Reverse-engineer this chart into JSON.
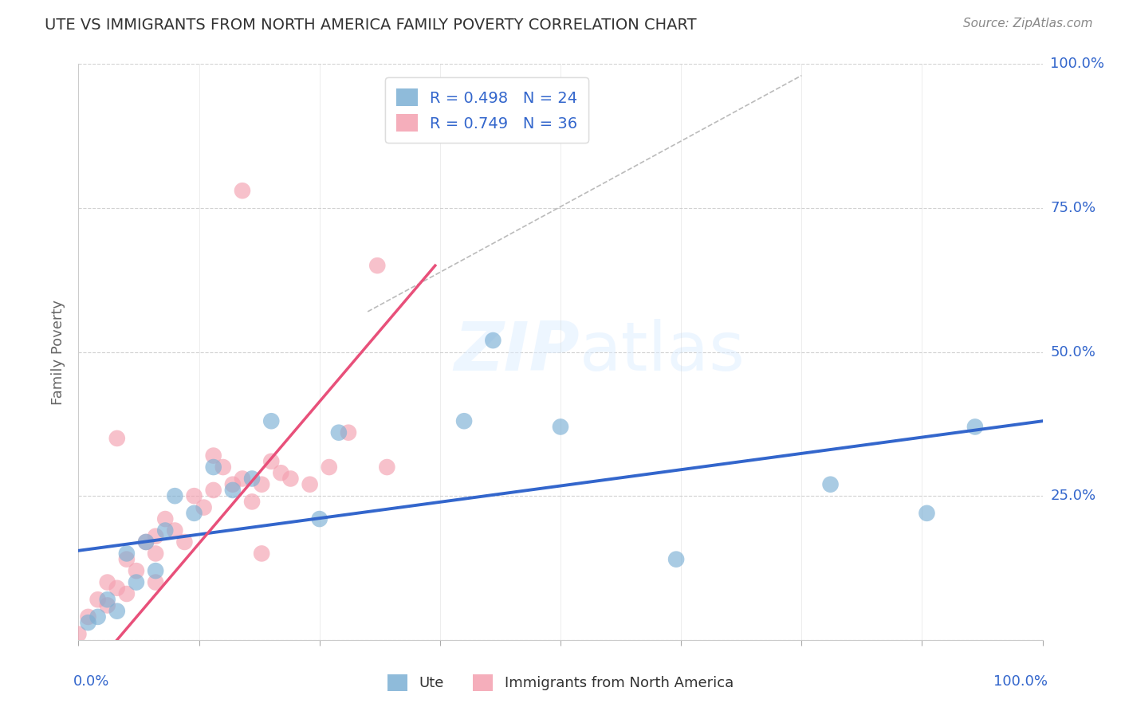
{
  "title": "UTE VS IMMIGRANTS FROM NORTH AMERICA FAMILY POVERTY CORRELATION CHART",
  "source": "Source: ZipAtlas.com",
  "ylabel": "Family Poverty",
  "xlim": [
    0,
    1
  ],
  "ylim": [
    0,
    1
  ],
  "ute_color": "#7BAFD4",
  "immigrants_color": "#F4A0B0",
  "ute_R": 0.498,
  "ute_N": 24,
  "immigrants_R": 0.749,
  "immigrants_N": 36,
  "ute_scatter_x": [
    0.01,
    0.02,
    0.03,
    0.04,
    0.05,
    0.06,
    0.07,
    0.08,
    0.09,
    0.1,
    0.12,
    0.14,
    0.16,
    0.18,
    0.2,
    0.25,
    0.27,
    0.4,
    0.43,
    0.5,
    0.62,
    0.78,
    0.88,
    0.93
  ],
  "ute_scatter_y": [
    0.03,
    0.04,
    0.07,
    0.05,
    0.15,
    0.1,
    0.17,
    0.12,
    0.19,
    0.25,
    0.22,
    0.3,
    0.26,
    0.28,
    0.38,
    0.21,
    0.36,
    0.38,
    0.52,
    0.37,
    0.14,
    0.27,
    0.22,
    0.37
  ],
  "immigrants_scatter_x": [
    0.0,
    0.01,
    0.02,
    0.03,
    0.03,
    0.04,
    0.05,
    0.05,
    0.06,
    0.07,
    0.08,
    0.08,
    0.09,
    0.1,
    0.11,
    0.12,
    0.13,
    0.14,
    0.15,
    0.16,
    0.17,
    0.18,
    0.19,
    0.2,
    0.21,
    0.22,
    0.24,
    0.26,
    0.28,
    0.31,
    0.32,
    0.17,
    0.04,
    0.08,
    0.14,
    0.19
  ],
  "immigrants_scatter_y": [
    0.01,
    0.04,
    0.07,
    0.06,
    0.1,
    0.09,
    0.08,
    0.14,
    0.12,
    0.17,
    0.15,
    0.18,
    0.21,
    0.19,
    0.17,
    0.25,
    0.23,
    0.26,
    0.3,
    0.27,
    0.28,
    0.24,
    0.27,
    0.31,
    0.29,
    0.28,
    0.27,
    0.3,
    0.36,
    0.65,
    0.3,
    0.78,
    0.35,
    0.1,
    0.32,
    0.15
  ],
  "ute_trend": [
    0.0,
    0.155,
    1.0,
    0.38
  ],
  "immigrants_trend": [
    0.04,
    0.0,
    0.37,
    0.65
  ],
  "dash_line": [
    0.3,
    0.57,
    0.75,
    0.98
  ],
  "background_color": "#ffffff",
  "grid_color": "#cccccc",
  "title_color": "#333333",
  "tick_color": "#3366CC",
  "trend_blue": "#3366CC",
  "trend_pink": "#E8507A"
}
